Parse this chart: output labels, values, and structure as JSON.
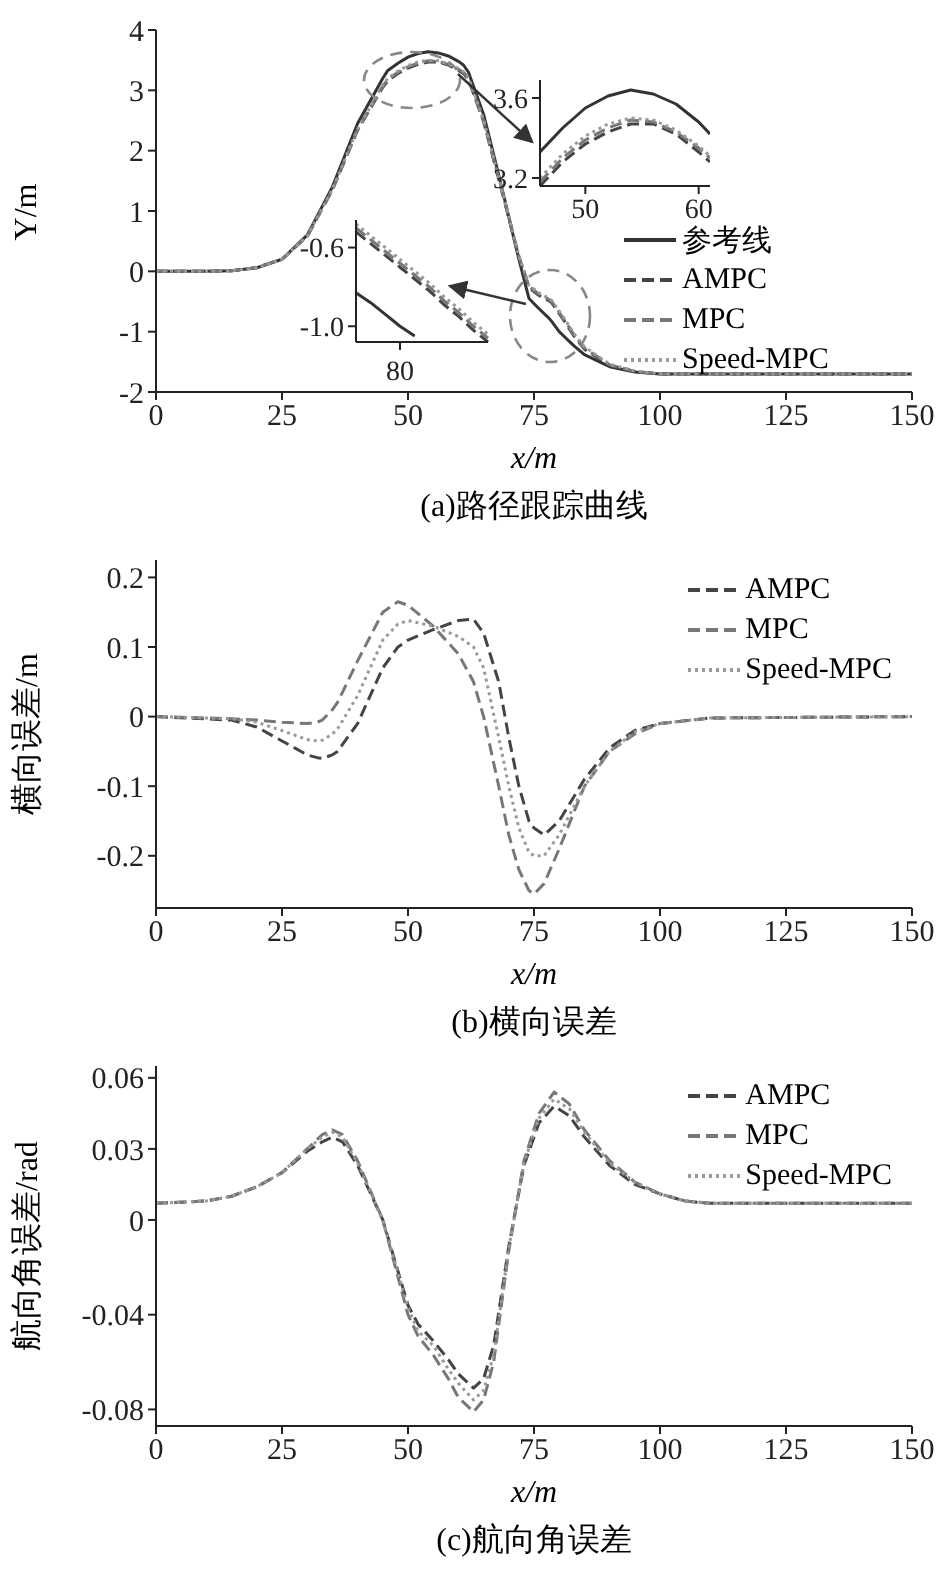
{
  "chart_data": [
    {
      "type": "line",
      "title": "(a)路径跟踪曲线",
      "xlabel": "x/m",
      "ylabel": "Y/m",
      "legend": "right",
      "x": [
        0,
        10,
        15,
        20,
        25,
        30,
        35,
        40,
        45,
        46,
        48,
        50,
        52,
        54,
        56,
        58,
        60,
        61,
        62,
        65,
        68,
        70,
        72,
        74,
        76,
        78,
        78.5,
        80,
        81,
        82,
        83,
        85,
        90,
        95,
        100,
        150
      ],
      "series": [
        {
          "name": "参考线",
          "color": "#333333",
          "line_style": "solid",
          "values": [
            0,
            0,
            0.01,
            0.06,
            0.2,
            0.6,
            1.4,
            2.45,
            3.2,
            3.33,
            3.45,
            3.55,
            3.61,
            3.64,
            3.62,
            3.57,
            3.48,
            3.42,
            3.3,
            2.6,
            1.6,
            0.9,
            0.2,
            -0.45,
            -0.62,
            -0.78,
            -0.83,
            -1.0,
            -1.08,
            -1.16,
            -1.24,
            -1.38,
            -1.58,
            -1.67,
            -1.7,
            -1.7
          ]
        },
        {
          "name": "AMPC",
          "color": "#444444",
          "line_style": "dashed",
          "values": [
            0,
            0,
            0.01,
            0.06,
            0.2,
            0.58,
            1.35,
            2.34,
            3.05,
            3.16,
            3.28,
            3.37,
            3.43,
            3.47,
            3.47,
            3.42,
            3.33,
            3.28,
            3.18,
            2.48,
            1.53,
            0.88,
            0.23,
            -0.27,
            -0.4,
            -0.49,
            -0.52,
            -0.7,
            -0.82,
            -0.95,
            -1.08,
            -1.29,
            -1.56,
            -1.66,
            -1.7,
            -1.7
          ]
        },
        {
          "name": "MPC",
          "color": "#777777",
          "line_style": "dashed",
          "values": [
            0,
            0,
            0.01,
            0.06,
            0.2,
            0.58,
            1.35,
            2.35,
            3.07,
            3.18,
            3.3,
            3.39,
            3.45,
            3.49,
            3.48,
            3.43,
            3.35,
            3.3,
            3.2,
            2.5,
            1.55,
            0.9,
            0.25,
            -0.25,
            -0.38,
            -0.47,
            -0.5,
            -0.68,
            -0.8,
            -0.93,
            -1.06,
            -1.27,
            -1.55,
            -1.66,
            -1.7,
            -1.7
          ]
        },
        {
          "name": "Speed-MPC",
          "color": "#999999",
          "line_style": "dotted",
          "values": [
            0,
            0,
            0.01,
            0.06,
            0.2,
            0.58,
            1.36,
            2.36,
            3.09,
            3.2,
            3.32,
            3.41,
            3.47,
            3.5,
            3.49,
            3.44,
            3.36,
            3.31,
            3.21,
            2.51,
            1.56,
            0.91,
            0.26,
            -0.23,
            -0.36,
            -0.45,
            -0.48,
            -0.66,
            -0.78,
            -0.91,
            -1.04,
            -1.25,
            -1.54,
            -1.65,
            -1.7,
            -1.7
          ]
        }
      ],
      "xlim": [
        0,
        150
      ],
      "ylim": [
        -2,
        4
      ],
      "xticks": [
        0,
        25,
        50,
        75,
        100,
        125,
        150
      ],
      "yticks": [
        -2,
        -1,
        0,
        1,
        2,
        3,
        4
      ]
    },
    {
      "type": "line",
      "x": [
        46,
        48,
        50,
        52,
        54,
        56,
        58,
        60,
        61
      ],
      "series": [
        {
          "color": "#333333",
          "line_style": "solid",
          "values": [
            3.33,
            3.45,
            3.55,
            3.61,
            3.64,
            3.62,
            3.57,
            3.48,
            3.42
          ]
        },
        {
          "color": "#444444",
          "line_style": "dashed",
          "values": [
            3.16,
            3.28,
            3.37,
            3.43,
            3.47,
            3.47,
            3.42,
            3.33,
            3.28
          ]
        },
        {
          "color": "#777777",
          "line_style": "dashed",
          "values": [
            3.18,
            3.3,
            3.39,
            3.45,
            3.49,
            3.48,
            3.43,
            3.35,
            3.3
          ]
        },
        {
          "color": "#999999",
          "line_style": "dotted",
          "values": [
            3.2,
            3.32,
            3.41,
            3.47,
            3.5,
            3.49,
            3.44,
            3.36,
            3.31
          ]
        }
      ],
      "xlim": [
        46,
        61
      ],
      "ylim": [
        3.16,
        3.69
      ],
      "xticks": [
        50,
        60
      ],
      "yticks": [
        3.2,
        3.6
      ]
    },
    {
      "type": "line",
      "categories": [
        null,
        null,
        null,
        "80",
        null,
        null,
        null,
        null,
        null,
        null
      ],
      "series": [
        {
          "color": "#333333",
          "line_style": "solid",
          "values": [
            -0.83,
            -0.88,
            -0.94,
            -1.0,
            -1.05,
            null,
            null,
            null,
            null,
            null
          ]
        },
        {
          "color": "#444444",
          "line_style": "dashed",
          "values": [
            -0.52,
            -0.58,
            -0.64,
            -0.7,
            -0.76,
            -0.82,
            -0.89,
            -0.95,
            -1.02,
            -1.08
          ]
        },
        {
          "color": "#777777",
          "line_style": "dashed",
          "values": [
            -0.5,
            -0.56,
            -0.62,
            -0.68,
            -0.74,
            -0.8,
            -0.87,
            -0.93,
            -1.0,
            -1.06
          ]
        },
        {
          "color": "#999999",
          "line_style": "dotted",
          "values": [
            -0.48,
            -0.54,
            -0.6,
            -0.66,
            -0.72,
            -0.78,
            -0.85,
            -0.91,
            -0.98,
            -1.04
          ]
        }
      ],
      "ylim": [
        -1.08,
        -0.46
      ],
      "yticks": [
        {
          "value": -1,
          "label": "-1.0"
        },
        -0.6
      ]
    },
    {
      "type": "line",
      "title": "(b)横向误差",
      "xlabel": "x/m",
      "ylabel": "横向误差/m",
      "legend": "top right",
      "x": [
        0,
        15,
        20,
        25,
        30,
        32,
        33,
        35,
        36,
        40,
        45,
        48,
        50,
        55,
        60,
        63,
        65,
        68,
        70,
        72,
        74,
        75,
        77,
        80,
        85,
        90,
        95,
        100,
        110,
        150
      ],
      "series": [
        {
          "name": "AMPC",
          "color": "#444444",
          "line_style": "dashed",
          "values": [
            0,
            -0.005,
            -0.015,
            -0.035,
            -0.055,
            -0.059,
            -0.06,
            -0.055,
            -0.05,
            -0.01,
            0.07,
            0.1,
            0.11,
            0.125,
            0.138,
            0.14,
            0.12,
            0.05,
            -0.03,
            -0.1,
            -0.15,
            -0.16,
            -0.17,
            -0.15,
            -0.09,
            -0.045,
            -0.02,
            -0.01,
            -0.002,
            0
          ]
        },
        {
          "name": "MPC",
          "color": "#777777",
          "line_style": "dashed",
          "values": [
            0,
            -0.003,
            -0.005,
            -0.008,
            -0.01,
            -0.008,
            -0.005,
            0.01,
            0.02,
            0.08,
            0.15,
            0.165,
            0.16,
            0.13,
            0.09,
            0.05,
            0,
            -0.1,
            -0.17,
            -0.22,
            -0.25,
            -0.255,
            -0.24,
            -0.19,
            -0.1,
            -0.05,
            -0.025,
            -0.01,
            -0.002,
            0
          ]
        },
        {
          "name": "Speed-MPC",
          "color": "#999999",
          "line_style": "dotted",
          "values": [
            0,
            -0.003,
            -0.008,
            -0.02,
            -0.033,
            -0.035,
            -0.034,
            -0.025,
            -0.018,
            0.03,
            0.11,
            0.133,
            0.138,
            0.13,
            0.115,
            0.1,
            0.07,
            -0.03,
            -0.1,
            -0.16,
            -0.195,
            -0.2,
            -0.2,
            -0.17,
            -0.1,
            -0.05,
            -0.022,
            -0.01,
            -0.002,
            0
          ]
        }
      ],
      "xlim": [
        0,
        150
      ],
      "ylim": [
        -0.275,
        0.225
      ],
      "xticks": [
        0,
        25,
        50,
        75,
        100,
        125,
        150
      ],
      "yticks": [
        -0.2,
        -0.1,
        0,
        0.1,
        0.2
      ]
    },
    {
      "type": "line",
      "title": "(c)航向角误差",
      "xlabel": "x/m",
      "ylabel": "航向角误差/rad",
      "legend": "top right",
      "x": [
        0,
        10,
        15,
        20,
        25,
        30,
        33,
        35,
        37,
        40,
        45,
        50,
        52,
        55,
        58,
        60,
        63,
        65,
        67,
        70,
        73,
        76,
        79,
        82,
        85,
        90,
        95,
        100,
        105,
        110,
        150
      ],
      "series": [
        {
          "name": "AMPC",
          "color": "#444444",
          "line_style": "dashed",
          "values": [
            0.007,
            0.008,
            0.01,
            0.014,
            0.02,
            0.029,
            0.033,
            0.035,
            0.033,
            0.023,
            0,
            -0.036,
            -0.044,
            -0.051,
            -0.059,
            -0.065,
            -0.071,
            -0.067,
            -0.053,
            -0.011,
            0.023,
            0.041,
            0.048,
            0.044,
            0.035,
            0.023,
            0.015,
            0.011,
            0.008,
            0.007,
            0.007
          ]
        },
        {
          "name": "MPC",
          "color": "#777777",
          "line_style": "dashed",
          "values": [
            0.007,
            0.008,
            0.01,
            0.014,
            0.02,
            0.03,
            0.036,
            0.038,
            0.036,
            0.025,
            0,
            -0.04,
            -0.049,
            -0.057,
            -0.067,
            -0.075,
            -0.081,
            -0.076,
            -0.06,
            -0.013,
            0.025,
            0.045,
            0.054,
            0.049,
            0.038,
            0.025,
            0.016,
            0.011,
            0.008,
            0.007,
            0.007
          ]
        },
        {
          "name": "Speed-MPC",
          "color": "#999999",
          "line_style": "dotted",
          "values": [
            0.007,
            0.008,
            0.01,
            0.014,
            0.02,
            0.03,
            0.035,
            0.037,
            0.035,
            0.024,
            0,
            -0.037,
            -0.047,
            -0.053,
            -0.063,
            -0.069,
            -0.076,
            -0.072,
            -0.057,
            -0.012,
            0.024,
            0.043,
            0.051,
            0.047,
            0.037,
            0.024,
            0.016,
            0.011,
            0.008,
            0.007,
            0.007
          ]
        }
      ],
      "xlim": [
        0,
        150
      ],
      "ylim": [
        -0.087,
        0.065
      ],
      "xticks": [
        0,
        25,
        50,
        75,
        100,
        125,
        150
      ],
      "yticks": [
        -0.08,
        -0.04,
        0,
        0.03,
        0.06
      ]
    }
  ]
}
